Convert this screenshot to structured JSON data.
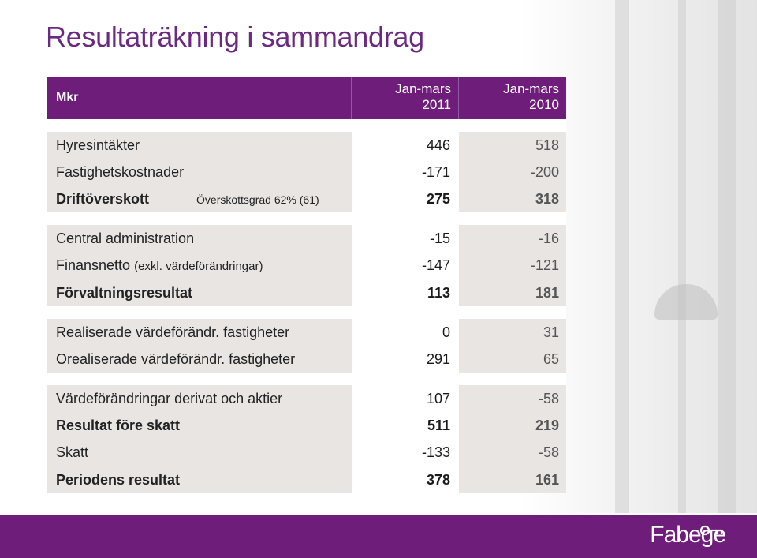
{
  "title": "Resultaträkning i sammandrag",
  "header": {
    "col_label": "Mkr",
    "col1": [
      "Jan-mars",
      "2011"
    ],
    "col2": [
      "Jan-mars",
      "2010"
    ]
  },
  "groups": [
    [
      {
        "label": "Hyresintäkter",
        "v1": "446",
        "v2": "518"
      },
      {
        "label": "Fastighetskostnader",
        "v1": "-171",
        "v2": "-200"
      },
      {
        "label": "Driftöverskott",
        "note": "Överskottsgrad 62% (61)",
        "v1": "275",
        "v2": "318",
        "bold": true
      }
    ],
    [
      {
        "label": "Central administration",
        "v1": "-15",
        "v2": "-16"
      },
      {
        "label": "Finansnetto",
        "note_inline": "(exkl. värdeförändringar)",
        "v1": "-147",
        "v2": "-121"
      },
      {
        "label": "Förvaltningsresultat",
        "v1": "113",
        "v2": "181",
        "bold": true
      }
    ],
    [
      {
        "label": "Realiserade värdeförändr. fastigheter",
        "v1": "0",
        "v2": "31"
      },
      {
        "label": "Orealiserade värdeförändr. fastigheter",
        "v1": "291",
        "v2": "65"
      }
    ],
    [
      {
        "label": "Värdeförändringar derivat och aktier",
        "v1": "107",
        "v2": "-58"
      },
      {
        "label": "Resultat före skatt",
        "v1": "511",
        "v2": "219",
        "bold": true
      },
      {
        "label": "Skatt",
        "v1": "-133",
        "v2": "-58"
      },
      {
        "label": "Periodens resultat",
        "v1": "378",
        "v2": "161",
        "bold": true
      }
    ]
  ],
  "logo_text": "Fabege",
  "colors": {
    "brand": "#6f1d7a",
    "row_bg": "#e9e5e3"
  }
}
